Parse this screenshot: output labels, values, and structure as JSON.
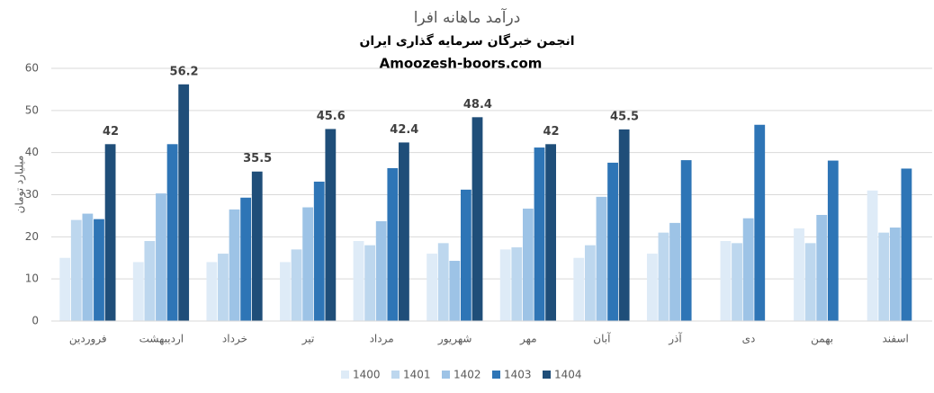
{
  "chart_data": {
    "type": "bar",
    "title": "درآمد ماهانه افرا",
    "subtitle": "انجمن خبرگان سرمایه گذاری ایران",
    "source": "Amoozesh-boors.com",
    "y_label": "میلیارد تومان",
    "categories": [
      "فروردین",
      "اردیبهشت",
      "خرداد",
      "تیر",
      "مرداد",
      "شهریور",
      "مهر",
      "آبان",
      "آذر",
      "دی",
      "بهمن",
      "اسفند"
    ],
    "series": [
      {
        "name": "1400",
        "color": "#deebf7",
        "values": [
          15,
          14,
          14,
          14,
          19,
          16,
          17,
          15,
          16,
          19,
          22,
          31
        ]
      },
      {
        "name": "1401",
        "color": "#bdd7ee",
        "values": [
          24,
          19,
          16,
          17,
          18,
          18.5,
          17.5,
          18,
          21,
          18.5,
          18.5,
          21
        ]
      },
      {
        "name": "1402",
        "color": "#9dc3e6",
        "values": [
          25.5,
          30.3,
          26.5,
          27,
          23.7,
          14.3,
          26.7,
          29.5,
          23.3,
          24.4,
          25.2,
          22.2
        ]
      },
      {
        "name": "1403",
        "color": "#2e75b6",
        "values": [
          24.2,
          42,
          29.3,
          33.1,
          36.3,
          31.2,
          41.2,
          37.6,
          38.2,
          46.6,
          38.1,
          36.2
        ]
      },
      {
        "name": "1404",
        "color": "#1f4e79",
        "values": [
          42,
          56.2,
          35.5,
          45.6,
          42.4,
          48.4,
          42,
          45.5,
          null,
          null,
          null,
          null
        ],
        "data_labels": true
      }
    ],
    "ylim": [
      0,
      60
    ],
    "yticks": [
      0,
      10,
      20,
      30,
      40,
      50,
      60
    ],
    "grid": true,
    "legend": "bottom"
  }
}
